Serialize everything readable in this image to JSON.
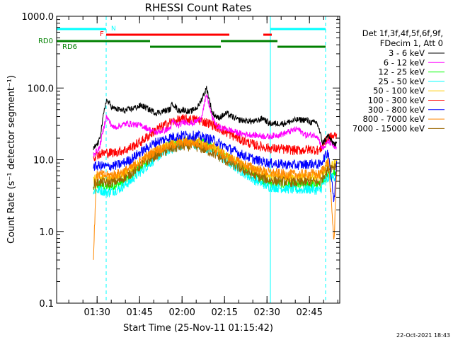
{
  "chart_data": {
    "type": "line",
    "title": "RHESSI Count Rates",
    "xlabel": "Start Time (25-Nov-11 01:15:42)",
    "ylabel": "Count Rate (s⁻¹ detector segment⁻¹)",
    "yscale": "log",
    "ylim": [
      0.1,
      1000
    ],
    "y_ticks": [
      0.1,
      1,
      10,
      100,
      1000
    ],
    "y_tick_labels": [
      "0.1",
      "1.0",
      "10.0",
      "100.0",
      "1000.0"
    ],
    "xlim_minutes": [
      0,
      100
    ],
    "x_ticks_minutes": [
      14.3,
      29.3,
      44.3,
      59.3,
      74.3,
      89.3
    ],
    "x_tick_labels": [
      "01:30",
      "01:45",
      "02:00",
      "02:15",
      "02:30",
      "02:45"
    ],
    "legend": {
      "header": [
        "Det 1f,3f,4f,5f,6f,9f,",
        "FDecim 1, Att 0"
      ],
      "position": "right"
    },
    "timestamp": "22-Oct-2021 18:43",
    "series": [
      {
        "name": "3 - 6 keV",
        "color": "#000000",
        "t": [
          13,
          15,
          17.5,
          20,
          24,
          30,
          35,
          40,
          41,
          43,
          45,
          47,
          50,
          53,
          55,
          57,
          60,
          64,
          70,
          73,
          75,
          80,
          85,
          88,
          90,
          92,
          94,
          96,
          97,
          99
        ],
        "v": [
          14,
          18,
          68,
          52,
          48,
          57,
          45,
          50,
          62,
          48,
          50,
          46,
          55,
          100,
          45,
          38,
          44,
          36,
          34,
          38,
          32,
          32,
          36,
          36,
          33,
          33,
          17,
          22,
          18,
          16
        ]
      },
      {
        "name": "6 - 12 keV",
        "color": "#ff00ff",
        "t": [
          13,
          15,
          17.5,
          20,
          25,
          30,
          35,
          40,
          41,
          43,
          45,
          48,
          51,
          53,
          55,
          57,
          60,
          65,
          70,
          75,
          80,
          85,
          88,
          90,
          92,
          94,
          96,
          99
        ],
        "v": [
          12,
          14,
          40,
          28,
          32,
          30,
          24,
          27,
          34,
          30,
          34,
          32,
          38,
          80,
          38,
          28,
          27,
          23,
          22,
          21,
          23,
          27,
          22,
          22,
          22,
          14,
          18,
          14
        ]
      },
      {
        "name": "12 - 25 keV",
        "color": "#00ff00",
        "t": [
          13,
          15,
          18,
          22,
          26,
          30,
          35,
          40,
          45,
          50,
          55,
          60,
          65,
          70,
          75,
          80,
          85,
          90,
          93,
          94,
          96,
          99
        ],
        "v": [
          4,
          4.5,
          4.2,
          4.6,
          5.8,
          8,
          12,
          16,
          18.5,
          18,
          15,
          11,
          8,
          6,
          4.8,
          4.6,
          4.4,
          4.6,
          4.4,
          5,
          6,
          7
        ]
      },
      {
        "name": "25 - 50 keV",
        "color": "#00ffff",
        "t": [
          13,
          15,
          18,
          22,
          26,
          30,
          35,
          40,
          45,
          50,
          55,
          60,
          65,
          70,
          75,
          80,
          85,
          90,
          93,
          94,
          96,
          99
        ],
        "v": [
          3.6,
          3.8,
          3.5,
          3.9,
          5,
          7,
          10.5,
          14,
          16.5,
          16,
          13.5,
          9.5,
          7,
          5.2,
          4.2,
          4,
          3.8,
          3.9,
          3.7,
          4.5,
          5.5,
          6
        ]
      },
      {
        "name": "50 - 100 keV",
        "color": "#ffcc00",
        "t": [
          13,
          15,
          18,
          22,
          26,
          30,
          35,
          40,
          45,
          50,
          55,
          60,
          65,
          70,
          75,
          80,
          85,
          90,
          93,
          94,
          96,
          99
        ],
        "v": [
          5.2,
          5.6,
          5.4,
          5.9,
          7.2,
          9.5,
          13,
          16.5,
          18.5,
          18,
          15.5,
          11.5,
          8.8,
          7,
          6,
          5.8,
          5.6,
          5.8,
          5.6,
          6.5,
          8,
          9
        ]
      },
      {
        "name": "100 - 300 keV",
        "color": "#ff0000",
        "t": [
          13,
          15,
          17.5,
          20,
          25,
          30,
          35,
          40,
          45,
          50,
          55,
          60,
          65,
          70,
          75,
          80,
          85,
          90,
          93,
          94,
          96,
          99
        ],
        "v": [
          11,
          12,
          12.5,
          12.5,
          14,
          18,
          26,
          33,
          37,
          36,
          31,
          24,
          19,
          16,
          14.5,
          14,
          13.5,
          14,
          13.5,
          16,
          20,
          22
        ]
      },
      {
        "name": "300 - 800 keV",
        "color": "#0000ff",
        "t": [
          13,
          15,
          18,
          22,
          26,
          30,
          35,
          40,
          45,
          50,
          55,
          60,
          65,
          70,
          75,
          80,
          85,
          90,
          93,
          94,
          96,
          98,
          99
        ],
        "v": [
          8,
          8.3,
          8,
          8.5,
          10,
          13,
          17.5,
          20.5,
          22,
          21.5,
          19,
          15,
          12,
          10,
          9,
          8.6,
          8.4,
          8.8,
          8.5,
          10,
          13,
          2.5,
          12
        ]
      },
      {
        "name": "800 - 7000 keV",
        "color": "#ff8800",
        "t": [
          13,
          14,
          15,
          18,
          22,
          26,
          30,
          35,
          40,
          45,
          50,
          55,
          60,
          65,
          70,
          75,
          80,
          85,
          90,
          93,
          94,
          96,
          98,
          99
        ],
        "v": [
          0.4,
          6,
          6.2,
          6,
          6.4,
          7.6,
          10,
          13.5,
          16,
          17.5,
          17,
          14.5,
          11,
          9,
          7.5,
          6.6,
          6.3,
          6.2,
          6.4,
          6.2,
          7.5,
          9.5,
          0.7,
          10
        ]
      },
      {
        "name": "7000 - 15000 keV",
        "color": "#996600",
        "t": [
          13,
          15,
          18,
          22,
          26,
          30,
          35,
          40,
          45,
          50,
          55,
          60,
          65,
          70,
          75,
          80,
          85,
          90,
          93,
          94,
          96,
          99
        ],
        "v": [
          4.6,
          4.9,
          4.7,
          5.1,
          6.3,
          8.5,
          11.5,
          14,
          15.5,
          15,
          12.5,
          9.5,
          7.5,
          6,
          5.2,
          5,
          4.8,
          5,
          4.8,
          5.8,
          7.5,
          8.5
        ]
      }
    ],
    "annotations": {
      "night": {
        "label": "N",
        "color": "#00ffff",
        "segments": [
          {
            "t0": 0,
            "t1": 17.5
          },
          {
            "t0": 75.5,
            "t1": 95
          }
        ]
      },
      "flare": {
        "label": "F",
        "color": "#ff0000",
        "segments": [
          {
            "t0": 17.5,
            "t1": 61
          },
          {
            "t0": 73,
            "t1": 76
          }
        ]
      },
      "rd0": {
        "label": "RD0",
        "color": "#008000",
        "segments": [
          {
            "t0": 0,
            "t1": 33
          },
          {
            "t0": 58,
            "t1": 78
          }
        ]
      },
      "rd6": {
        "label": "RD6",
        "color": "#008000",
        "segments": [
          {
            "t0": 33,
            "t1": 58
          },
          {
            "t0": 78,
            "t1": 95
          }
        ]
      },
      "saa_edges_solid": [
        0,
        75.5
      ],
      "saa_edges_dashed": [
        17.5,
        95
      ]
    }
  }
}
